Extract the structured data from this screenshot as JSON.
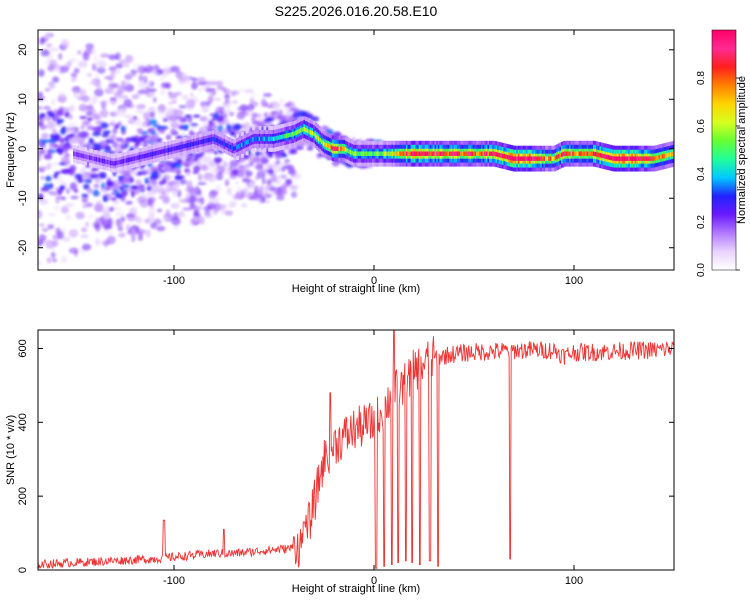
{
  "title": "S225.2026.016.20.58.E10",
  "colors": {
    "line": "#ee3333",
    "axis": "#000000",
    "colormap": [
      "#ffffff",
      "#e9d3ff",
      "#b27aff",
      "#6a1aff",
      "#2222ff",
      "#00c8ff",
      "#20ff9a",
      "#66ff33",
      "#d8ff20",
      "#ffd400",
      "#ff8000",
      "#ff1f1f",
      "#ff2a92",
      "#ff0066"
    ]
  },
  "chart_data": [
    {
      "type": "heatmap",
      "title": "S225.2026.016.20.58.E10",
      "xlabel": "Height of straight line (km)",
      "ylabel": "Frequency (Hz)",
      "xlim": [
        -168,
        150
      ],
      "ylim": [
        -24.5,
        24
      ],
      "xticks": [
        -100,
        0,
        100
      ],
      "xtick_labels": [
        "-100",
        "0",
        "100"
      ],
      "yticks": [
        20,
        10,
        0,
        -10,
        -20
      ],
      "ytick_labels": [
        "20",
        "10",
        "0",
        "-10",
        "-20"
      ],
      "colorbar": {
        "label": "Normalized spectral amplitude",
        "range": [
          0,
          1
        ],
        "ticks": [
          0,
          0.2,
          0.4,
          0.6,
          0.8
        ],
        "tick_labels": [
          "0.0",
          "0.2",
          "0.4",
          "0.6",
          "0.8"
        ]
      },
      "ridge": {
        "x": [
          -150,
          -140,
          -130,
          -120,
          -110,
          -100,
          -90,
          -80,
          -70,
          -60,
          -50,
          -40,
          -35,
          -30,
          -25,
          -20,
          -15,
          -10,
          -5,
          0,
          10,
          20,
          30,
          40,
          50,
          60,
          70,
          80,
          85,
          90,
          95,
          100,
          110,
          120,
          130,
          140,
          150
        ],
        "freq": [
          -1,
          -2,
          -3,
          -2,
          -1,
          0,
          1,
          2,
          0,
          2,
          2,
          3,
          4,
          3,
          1,
          0,
          0,
          -1,
          -1,
          -1,
          -1,
          -1,
          -1,
          -1,
          -1,
          -1,
          -2,
          -2,
          -2,
          -2,
          -1,
          -1,
          -1,
          -2,
          -2,
          -2,
          -1
        ],
        "amplitude": [
          0.18,
          0.18,
          0.2,
          0.2,
          0.22,
          0.22,
          0.24,
          0.25,
          0.28,
          0.3,
          0.35,
          0.45,
          0.5,
          0.5,
          0.55,
          0.8,
          0.55,
          0.5,
          0.45,
          0.45,
          0.55,
          0.85,
          0.75,
          0.72,
          0.7,
          0.75,
          0.95,
          0.95,
          0.7,
          0.6,
          0.85,
          0.65,
          0.78,
          0.95,
          0.92,
          0.7,
          0.55
        ]
      }
    },
    {
      "type": "line",
      "title": "",
      "xlabel": "Height of straight line (km)",
      "ylabel": "SNR (10 * v/v)",
      "xlim": [
        -168,
        150
      ],
      "ylim": [
        0,
        650
      ],
      "xticks": [
        -100,
        0,
        100
      ],
      "xtick_labels": [
        "-100",
        "0",
        "100"
      ],
      "yticks": [
        0,
        200,
        400,
        600
      ],
      "ytick_labels": [
        "0",
        "200",
        "400",
        "600"
      ],
      "series": [
        {
          "name": "SNR",
          "x": [
            -168,
            -150,
            -130,
            -110,
            -100,
            -90,
            -80,
            -70,
            -60,
            -50,
            -40,
            -35,
            -30,
            -25,
            -20,
            -15,
            -10,
            -5,
            0,
            5,
            10,
            15,
            20,
            25,
            30,
            35,
            40,
            50,
            60,
            70,
            80,
            90,
            95,
            100,
            110,
            120,
            130,
            140,
            150
          ],
          "values": [
            15,
            20,
            25,
            30,
            35,
            40,
            45,
            45,
            50,
            55,
            60,
            70,
            180,
            300,
            340,
            360,
            380,
            390,
            400,
            440,
            480,
            500,
            540,
            560,
            575,
            580,
            585,
            590,
            592,
            595,
            596,
            595,
            580,
            590,
            590,
            592,
            595,
            595,
            600
          ]
        }
      ],
      "spikes": [
        {
          "x": -40,
          "peak": 90
        },
        {
          "x": -35,
          "peak": 130
        },
        {
          "x": -105,
          "peak": 135
        },
        {
          "x": -75,
          "peak": 110
        },
        {
          "x": -22,
          "peak": 480
        },
        {
          "x": 10,
          "peak": 650
        }
      ],
      "dropouts": [
        {
          "x": 1,
          "min": 5
        },
        {
          "x": 5,
          "min": 10
        },
        {
          "x": 9,
          "min": 15
        },
        {
          "x": 12,
          "min": 20
        },
        {
          "x": 16,
          "min": 25
        },
        {
          "x": 19,
          "min": 20
        },
        {
          "x": 23,
          "min": 15
        },
        {
          "x": 28,
          "min": 25
        },
        {
          "x": 32,
          "min": 10
        },
        {
          "x": 68,
          "min": 30
        }
      ]
    }
  ]
}
